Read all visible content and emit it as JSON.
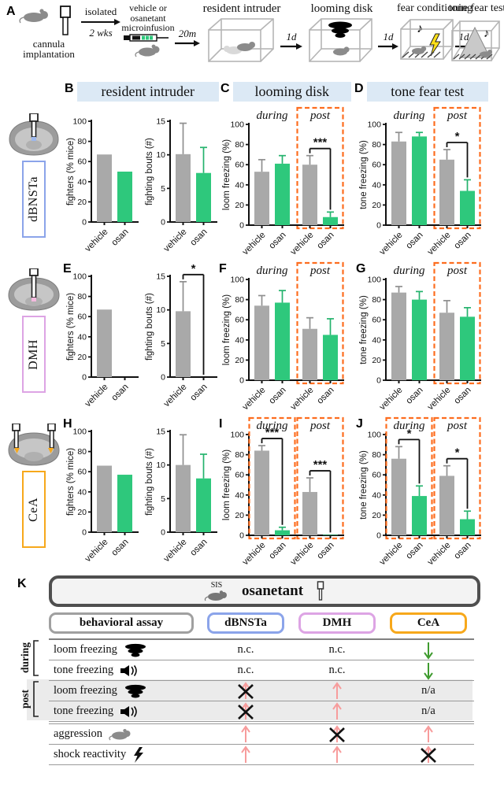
{
  "colors": {
    "bar_gray": "#a9a9a9",
    "bar_green": "#2ec87c",
    "err_gray": "#8f8f8f",
    "err_green": "#25b36d",
    "orange_dash": "#fd6d1f",
    "header_bg": "#dce9f5",
    "dbnsta": "#8ba4ea",
    "dmh": "#dda4e4",
    "cea": "#f7a81b",
    "assay_gray": "#a0a0a0",
    "up_arrow": "#f79c9c",
    "down_arrow": "#3f9b2f"
  },
  "timeline": {
    "letter": "A",
    "implant_line1": "cannula",
    "implant_line2": "implantation",
    "isolated": "isolated",
    "weeks": "2 wks",
    "infusion_line1": "vehicle or",
    "infusion_line2": "osanetant",
    "infusion_line3": "microinfusion",
    "t20m": "20m",
    "resident": "resident intruder",
    "d1a": "1d",
    "looming": "looming disk",
    "d1b": "1d",
    "fearcond": "fear conditioning",
    "d1c": "1d",
    "tonefear": "tone fear test"
  },
  "headers": [
    {
      "letter": "B",
      "title": "resident intruder"
    },
    {
      "letter": "C",
      "title": "looming disk"
    },
    {
      "letter": "D",
      "title": "tone fear test"
    }
  ],
  "rows": [
    {
      "region": "dBNSTa",
      "color": "dbnsta",
      "letters": [
        "",
        "",
        ""
      ]
    },
    {
      "region": "DMH",
      "color": "dmh",
      "letters": [
        "E",
        "F",
        "G"
      ]
    },
    {
      "region": "CeA",
      "color": "cea",
      "letters": [
        "H",
        "I",
        "J"
      ]
    }
  ],
  "chart_data": [
    {
      "id": "b1",
      "type": "bar",
      "ylabel": "fighters (% mice)",
      "ylim": [
        0,
        100
      ],
      "yticks": [
        0,
        20,
        40,
        60,
        80,
        100
      ],
      "groups": [
        {
          "label": "",
          "orange_box": false,
          "sig": "",
          "bars": [
            {
              "category": "vehicle",
              "value": 67,
              "err": 0
            },
            {
              "category": "osan",
              "value": 50,
              "err": 0
            }
          ]
        }
      ]
    },
    {
      "id": "b2",
      "type": "bar",
      "ylabel": "fighting bouts (#)",
      "ylim": [
        0,
        15
      ],
      "yticks": [
        0,
        5,
        10,
        15
      ],
      "groups": [
        {
          "label": "",
          "orange_box": false,
          "sig": "",
          "bars": [
            {
              "category": "vehicle",
              "value": 10.1,
              "err": 4.6
            },
            {
              "category": "osan",
              "value": 7.3,
              "err": 3.8
            }
          ]
        }
      ]
    },
    {
      "id": "c",
      "type": "bar",
      "ylabel": "loom freezing (%)",
      "ylim": [
        0,
        100
      ],
      "yticks": [
        0,
        20,
        40,
        60,
        80,
        100
      ],
      "groups": [
        {
          "label": "during",
          "orange_box": false,
          "sig": "",
          "bars": [
            {
              "category": "vehicle",
              "value": 53,
              "err": 12
            },
            {
              "category": "osan",
              "value": 61,
              "err": 8
            }
          ]
        },
        {
          "label": "post",
          "orange_box": true,
          "sig": "***",
          "bars": [
            {
              "category": "vehicle",
              "value": 60,
              "err": 9
            },
            {
              "category": "osan",
              "value": 8,
              "err": 5
            }
          ]
        }
      ]
    },
    {
      "id": "d",
      "type": "bar",
      "ylabel": "tone freezing (%)",
      "ylim": [
        0,
        100
      ],
      "yticks": [
        0,
        20,
        40,
        60,
        80,
        100
      ],
      "groups": [
        {
          "label": "during",
          "orange_box": false,
          "sig": "",
          "bars": [
            {
              "category": "vehicle",
              "value": 83,
              "err": 9
            },
            {
              "category": "osan",
              "value": 88,
              "err": 4
            }
          ]
        },
        {
          "label": "post",
          "orange_box": true,
          "sig": "*",
          "bars": [
            {
              "category": "vehicle",
              "value": 65,
              "err": 10
            },
            {
              "category": "osan",
              "value": 34,
              "err": 11
            }
          ]
        }
      ]
    },
    {
      "id": "e1",
      "type": "bar",
      "ylabel": "fighters (% mice)",
      "ylim": [
        0,
        100
      ],
      "yticks": [
        0,
        20,
        40,
        60,
        80,
        100
      ],
      "groups": [
        {
          "label": "",
          "orange_box": false,
          "sig": "",
          "bars": [
            {
              "category": "vehicle",
              "value": 67,
              "err": 0
            },
            {
              "category": "osan",
              "value": 0,
              "err": 0
            }
          ]
        }
      ]
    },
    {
      "id": "e2",
      "type": "bar",
      "ylabel": "fighting bouts (#)",
      "ylim": [
        0,
        15
      ],
      "yticks": [
        0,
        5,
        10,
        15
      ],
      "groups": [
        {
          "label": "",
          "orange_box": false,
          "sig": "*",
          "bars": [
            {
              "category": "vehicle",
              "value": 9.8,
              "err": 4.4
            },
            {
              "category": "osan",
              "value": 0,
              "err": 0
            }
          ]
        }
      ]
    },
    {
      "id": "f",
      "type": "bar",
      "ylabel": "loom freezing (%)",
      "ylim": [
        0,
        100
      ],
      "yticks": [
        0,
        20,
        40,
        60,
        80,
        100
      ],
      "groups": [
        {
          "label": "during",
          "orange_box": false,
          "sig": "",
          "bars": [
            {
              "category": "vehicle",
              "value": 74,
              "err": 10
            },
            {
              "category": "osan",
              "value": 77,
              "err": 12
            }
          ]
        },
        {
          "label": "post",
          "orange_box": true,
          "sig": "",
          "bars": [
            {
              "category": "vehicle",
              "value": 51,
              "err": 11
            },
            {
              "category": "osan",
              "value": 45,
              "err": 16
            }
          ]
        }
      ]
    },
    {
      "id": "g",
      "type": "bar",
      "ylabel": "tone freezing (%)",
      "ylim": [
        0,
        100
      ],
      "yticks": [
        0,
        20,
        40,
        60,
        80,
        100
      ],
      "groups": [
        {
          "label": "during",
          "orange_box": false,
          "sig": "",
          "bars": [
            {
              "category": "vehicle",
              "value": 87,
              "err": 6
            },
            {
              "category": "osan",
              "value": 80,
              "err": 8
            }
          ]
        },
        {
          "label": "post",
          "orange_box": true,
          "sig": "",
          "bars": [
            {
              "category": "vehicle",
              "value": 67,
              "err": 12
            },
            {
              "category": "osan",
              "value": 63,
              "err": 9
            }
          ]
        }
      ]
    },
    {
      "id": "h1",
      "type": "bar",
      "ylabel": "fighters (% mice)",
      "ylim": [
        0,
        100
      ],
      "yticks": [
        0,
        20,
        40,
        60,
        80,
        100
      ],
      "groups": [
        {
          "label": "",
          "orange_box": false,
          "sig": "",
          "bars": [
            {
              "category": "vehicle",
              "value": 66,
              "err": 0
            },
            {
              "category": "osan",
              "value": 57,
              "err": 0
            }
          ]
        }
      ]
    },
    {
      "id": "h2",
      "type": "bar",
      "ylabel": "fighting bouts (#)",
      "ylim": [
        0,
        15
      ],
      "yticks": [
        0,
        5,
        10,
        15
      ],
      "groups": [
        {
          "label": "",
          "orange_box": false,
          "sig": "",
          "bars": [
            {
              "category": "vehicle",
              "value": 10,
              "err": 4.5
            },
            {
              "category": "osan",
              "value": 8,
              "err": 3.6
            }
          ]
        }
      ]
    },
    {
      "id": "i",
      "type": "bar",
      "ylabel": "loom freezing (%)",
      "ylim": [
        0,
        100
      ],
      "yticks": [
        0,
        20,
        40,
        60,
        80,
        100
      ],
      "groups": [
        {
          "label": "during",
          "orange_box": true,
          "sig": "***",
          "bars": [
            {
              "category": "vehicle",
              "value": 84,
              "err": 5
            },
            {
              "category": "osan",
              "value": 5,
              "err": 3
            }
          ]
        },
        {
          "label": "post",
          "orange_box": true,
          "sig": "***",
          "bars": [
            {
              "category": "vehicle",
              "value": 43,
              "err": 14
            },
            {
              "category": "osan",
              "value": 0.5,
              "err": 0
            }
          ]
        }
      ]
    },
    {
      "id": "j",
      "type": "bar",
      "ylabel": "tone freezing (%)",
      "ylim": [
        0,
        100
      ],
      "yticks": [
        0,
        20,
        40,
        60,
        80,
        100
      ],
      "groups": [
        {
          "label": "during",
          "orange_box": true,
          "sig": "*",
          "bars": [
            {
              "category": "vehicle",
              "value": 76,
              "err": 12
            },
            {
              "category": "osan",
              "value": 39,
              "err": 10
            }
          ]
        },
        {
          "label": "post",
          "orange_box": true,
          "sig": "*",
          "bars": [
            {
              "category": "vehicle",
              "value": 59,
              "err": 10
            },
            {
              "category": "osan",
              "value": 16,
              "err": 8
            }
          ]
        }
      ]
    }
  ],
  "summary": {
    "letter": "K",
    "sis": "SIS",
    "drug": "osanetant",
    "assay_header": "behavioral assay",
    "regions": [
      "dBNSTa",
      "DMH",
      "CeA"
    ],
    "region_colors": [
      "dbnsta",
      "dmh",
      "cea"
    ],
    "side_groups": [
      {
        "label": "during",
        "first_row": 0
      },
      {
        "label": "post",
        "first_row": 2
      }
    ],
    "rows": [
      {
        "label": "loom freezing",
        "icon": "looming-disk-icon",
        "shaded": false,
        "group_start": false,
        "cells": [
          "n.c.",
          "n.c.",
          "down"
        ]
      },
      {
        "label": "tone freezing",
        "icon": "speaker-icon",
        "shaded": false,
        "group_start": false,
        "cells": [
          "n.c.",
          "n.c.",
          "down"
        ]
      },
      {
        "label": "loom freezing",
        "icon": "looming-disk-icon",
        "shaded": true,
        "group_start": false,
        "cells": [
          "x-up",
          "up",
          "n/a"
        ]
      },
      {
        "label": "tone freezing",
        "icon": "speaker-icon",
        "shaded": true,
        "group_start": false,
        "cells": [
          "x-up",
          "up",
          "n/a"
        ]
      },
      {
        "label": "aggression",
        "icon": "mouse-icon",
        "shaded": false,
        "group_start": true,
        "cells": [
          "up",
          "x-up",
          "up"
        ]
      },
      {
        "label": "shock reactivity",
        "icon": "lightning-icon",
        "shaded": false,
        "group_start": false,
        "cells": [
          "up",
          "up",
          "x-up"
        ]
      }
    ]
  }
}
